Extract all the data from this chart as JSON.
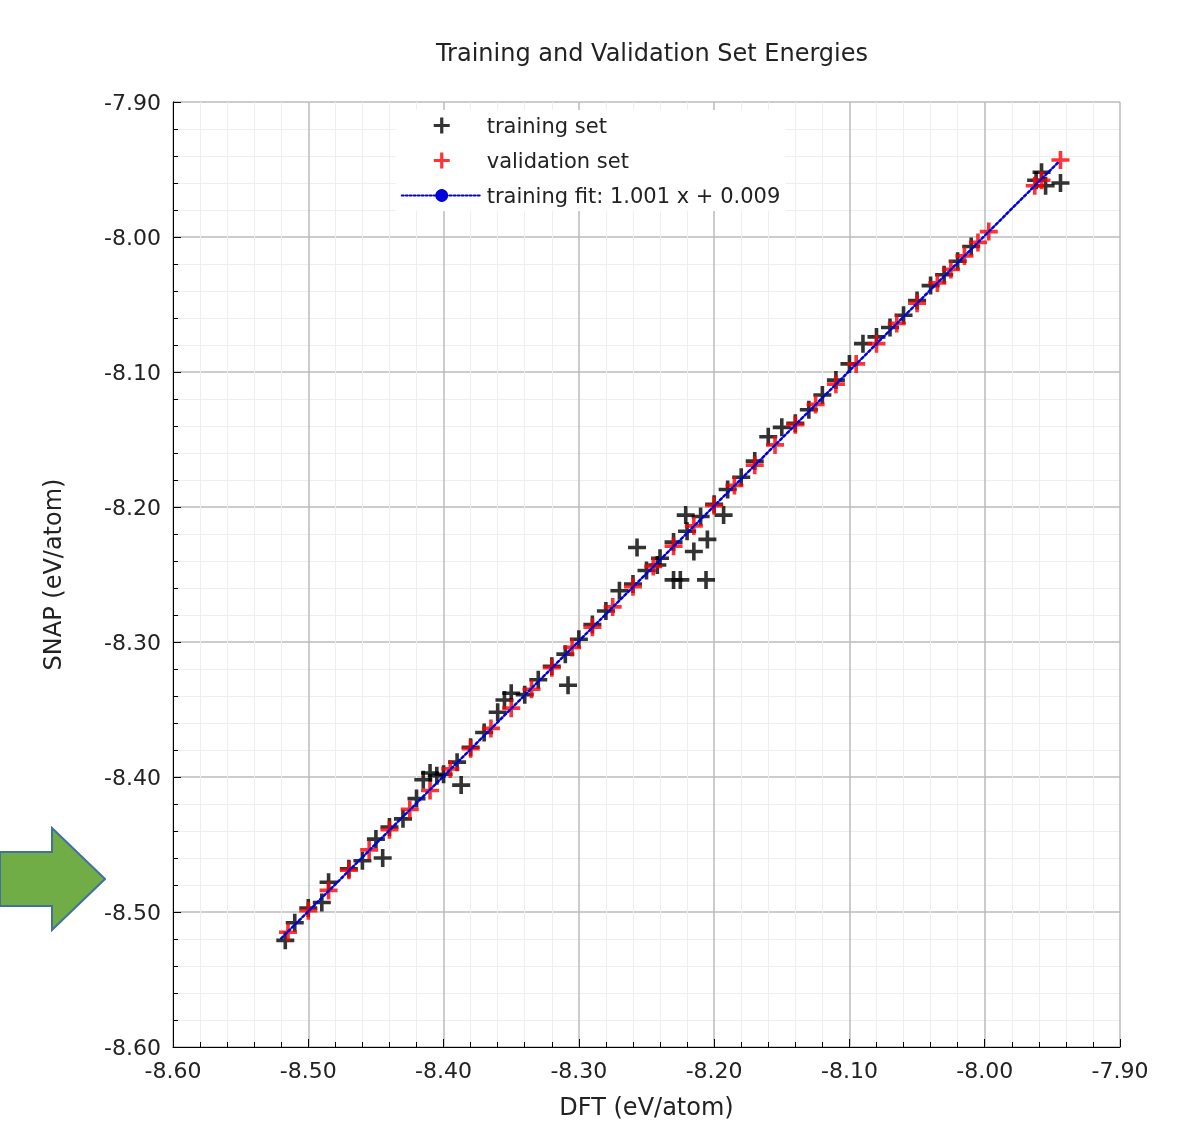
{
  "chart_data": {
    "type": "scatter",
    "title": "Training and Validation Set Energies",
    "xlabel": "DFT (eV/atom)",
    "ylabel": "SNAP (eV/atom)",
    "xlim": [
      -8.6,
      -7.9
    ],
    "ylim": [
      -8.6,
      -7.9
    ],
    "xticks": [
      {
        "value": -8.6,
        "label": "-8.60"
      },
      {
        "value": -8.5,
        "label": "-8.50"
      },
      {
        "value": -8.4,
        "label": "-8.40"
      },
      {
        "value": -8.3,
        "label": "-8.30"
      },
      {
        "value": -8.2,
        "label": "-8.20"
      },
      {
        "value": -8.1,
        "label": "-8.10"
      },
      {
        "value": -8.0,
        "label": "-8.00"
      },
      {
        "value": -7.9,
        "label": "-7.90"
      }
    ],
    "yticks": [
      {
        "value": -8.6,
        "label": "-8.60"
      },
      {
        "value": -8.5,
        "label": "-8.50"
      },
      {
        "value": -8.4,
        "label": "-8.40"
      },
      {
        "value": -8.3,
        "label": "-8.30"
      },
      {
        "value": -8.2,
        "label": "-8.20"
      },
      {
        "value": -8.1,
        "label": "-8.10"
      },
      {
        "value": -8.0,
        "label": "-8.00"
      },
      {
        "value": -7.9,
        "label": "-7.90"
      }
    ],
    "grid": true,
    "legend": "top",
    "series": [
      {
        "name": "training set",
        "marker": "cross",
        "color": "#000000",
        "x": [
          -8.517,
          -8.51,
          -8.5,
          -8.49,
          -8.485,
          -8.47,
          -8.46,
          -8.45,
          -8.44,
          -8.43,
          -8.42,
          -8.415,
          -8.41,
          -8.405,
          -8.4,
          -8.39,
          -8.38,
          -8.37,
          -8.36,
          -8.355,
          -8.35,
          -8.34,
          -8.33,
          -8.32,
          -8.31,
          -8.3,
          -8.29,
          -8.28,
          -8.27,
          -8.26,
          -8.25,
          -8.24,
          -8.23,
          -8.22,
          -8.21,
          -8.2,
          -8.19,
          -8.18,
          -8.17,
          -8.16,
          -8.15,
          -8.14,
          -8.13,
          -8.12,
          -8.11,
          -8.1,
          -8.09,
          -8.08,
          -8.07,
          -8.06,
          -8.05,
          -8.04,
          -8.03,
          -8.02,
          -8.01,
          -7.962,
          -7.958,
          -7.955,
          -8.257,
          -8.242,
          -8.23,
          -8.225,
          -8.206,
          -8.221,
          -8.215,
          -8.205,
          -8.193,
          -8.308,
          -8.387,
          -8.445,
          -7.944
        ],
        "values": [
          -8.521,
          -8.508,
          -8.497,
          -8.493,
          -8.478,
          -8.468,
          -8.462,
          -8.446,
          -8.437,
          -8.431,
          -8.416,
          -8.402,
          -8.397,
          -8.399,
          -8.398,
          -8.389,
          -8.378,
          -8.367,
          -8.352,
          -8.343,
          -8.338,
          -8.339,
          -8.328,
          -8.318,
          -8.309,
          -8.298,
          -8.287,
          -8.277,
          -8.262,
          -8.257,
          -8.247,
          -8.238,
          -8.226,
          -8.218,
          -8.207,
          -8.198,
          -8.187,
          -8.178,
          -8.166,
          -8.148,
          -8.141,
          -8.138,
          -8.128,
          -8.117,
          -8.106,
          -8.094,
          -8.079,
          -8.074,
          -8.067,
          -8.058,
          -8.047,
          -8.036,
          -8.028,
          -8.018,
          -8.007,
          -7.958,
          -7.952,
          -7.962,
          -8.23,
          -8.243,
          -8.254,
          -8.254,
          -8.254,
          -8.206,
          -8.233,
          -8.224,
          -8.206,
          -8.332,
          -8.406,
          -8.46,
          -7.96
        ]
      },
      {
        "name": "validation set",
        "marker": "cross",
        "color": "#ff0000",
        "x": [
          -8.515,
          -8.5,
          -8.485,
          -8.47,
          -8.455,
          -8.44,
          -8.425,
          -8.41,
          -8.395,
          -8.38,
          -8.365,
          -8.35,
          -8.335,
          -8.32,
          -8.305,
          -8.29,
          -8.275,
          -8.26,
          -8.245,
          -8.23,
          -8.215,
          -8.2,
          -8.185,
          -8.17,
          -8.155,
          -8.14,
          -8.125,
          -8.11,
          -8.095,
          -8.08,
          -8.065,
          -8.05,
          -8.035,
          -8.025,
          -8.015,
          -8.005,
          -7.997,
          -7.963,
          -7.958,
          -7.944
        ],
        "values": [
          -8.515,
          -8.499,
          -8.484,
          -8.469,
          -8.454,
          -8.439,
          -8.424,
          -8.41,
          -8.394,
          -8.379,
          -8.364,
          -8.349,
          -8.335,
          -8.319,
          -8.304,
          -8.289,
          -8.274,
          -8.259,
          -8.244,
          -8.229,
          -8.214,
          -8.199,
          -8.184,
          -8.169,
          -8.154,
          -8.139,
          -8.124,
          -8.109,
          -8.094,
          -8.079,
          -8.064,
          -8.049,
          -8.034,
          -8.024,
          -8.014,
          -8.004,
          -7.996,
          -7.962,
          -7.958,
          -7.943
        ]
      },
      {
        "name": "training fit: 1.001 x + 0.009",
        "type": "line",
        "marker": "none",
        "line_style": "dotted",
        "color": "#0000dd",
        "x": [
          -8.52,
          -7.945
        ],
        "values": [
          -8.5195,
          -7.944
        ]
      }
    ]
  }
}
